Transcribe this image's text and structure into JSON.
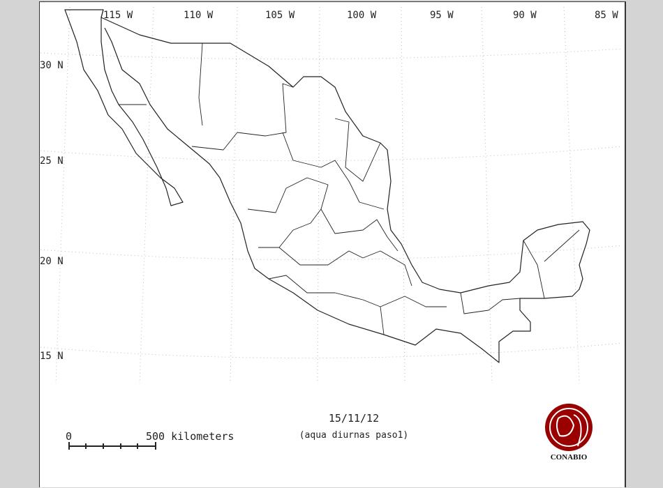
{
  "map": {
    "longitude_labels": [
      "115 W",
      "110 W",
      "105 W",
      "100 W",
      "95 W",
      "90 W",
      "85 W"
    ],
    "latitude_labels": [
      "30 N",
      "25 N",
      "20 N",
      "15 N"
    ],
    "date": "15/11/12",
    "subtitle": "(aqua diurnas paso1)",
    "scale_bar": {
      "start_label": "0",
      "end_label": "500 kilometers"
    },
    "logo_text": "CONABIO",
    "colors": {
      "logo": "#9b0000",
      "outline": "#222222",
      "graticule": "#bbbbbb",
      "background": "#d4d4d4"
    }
  }
}
